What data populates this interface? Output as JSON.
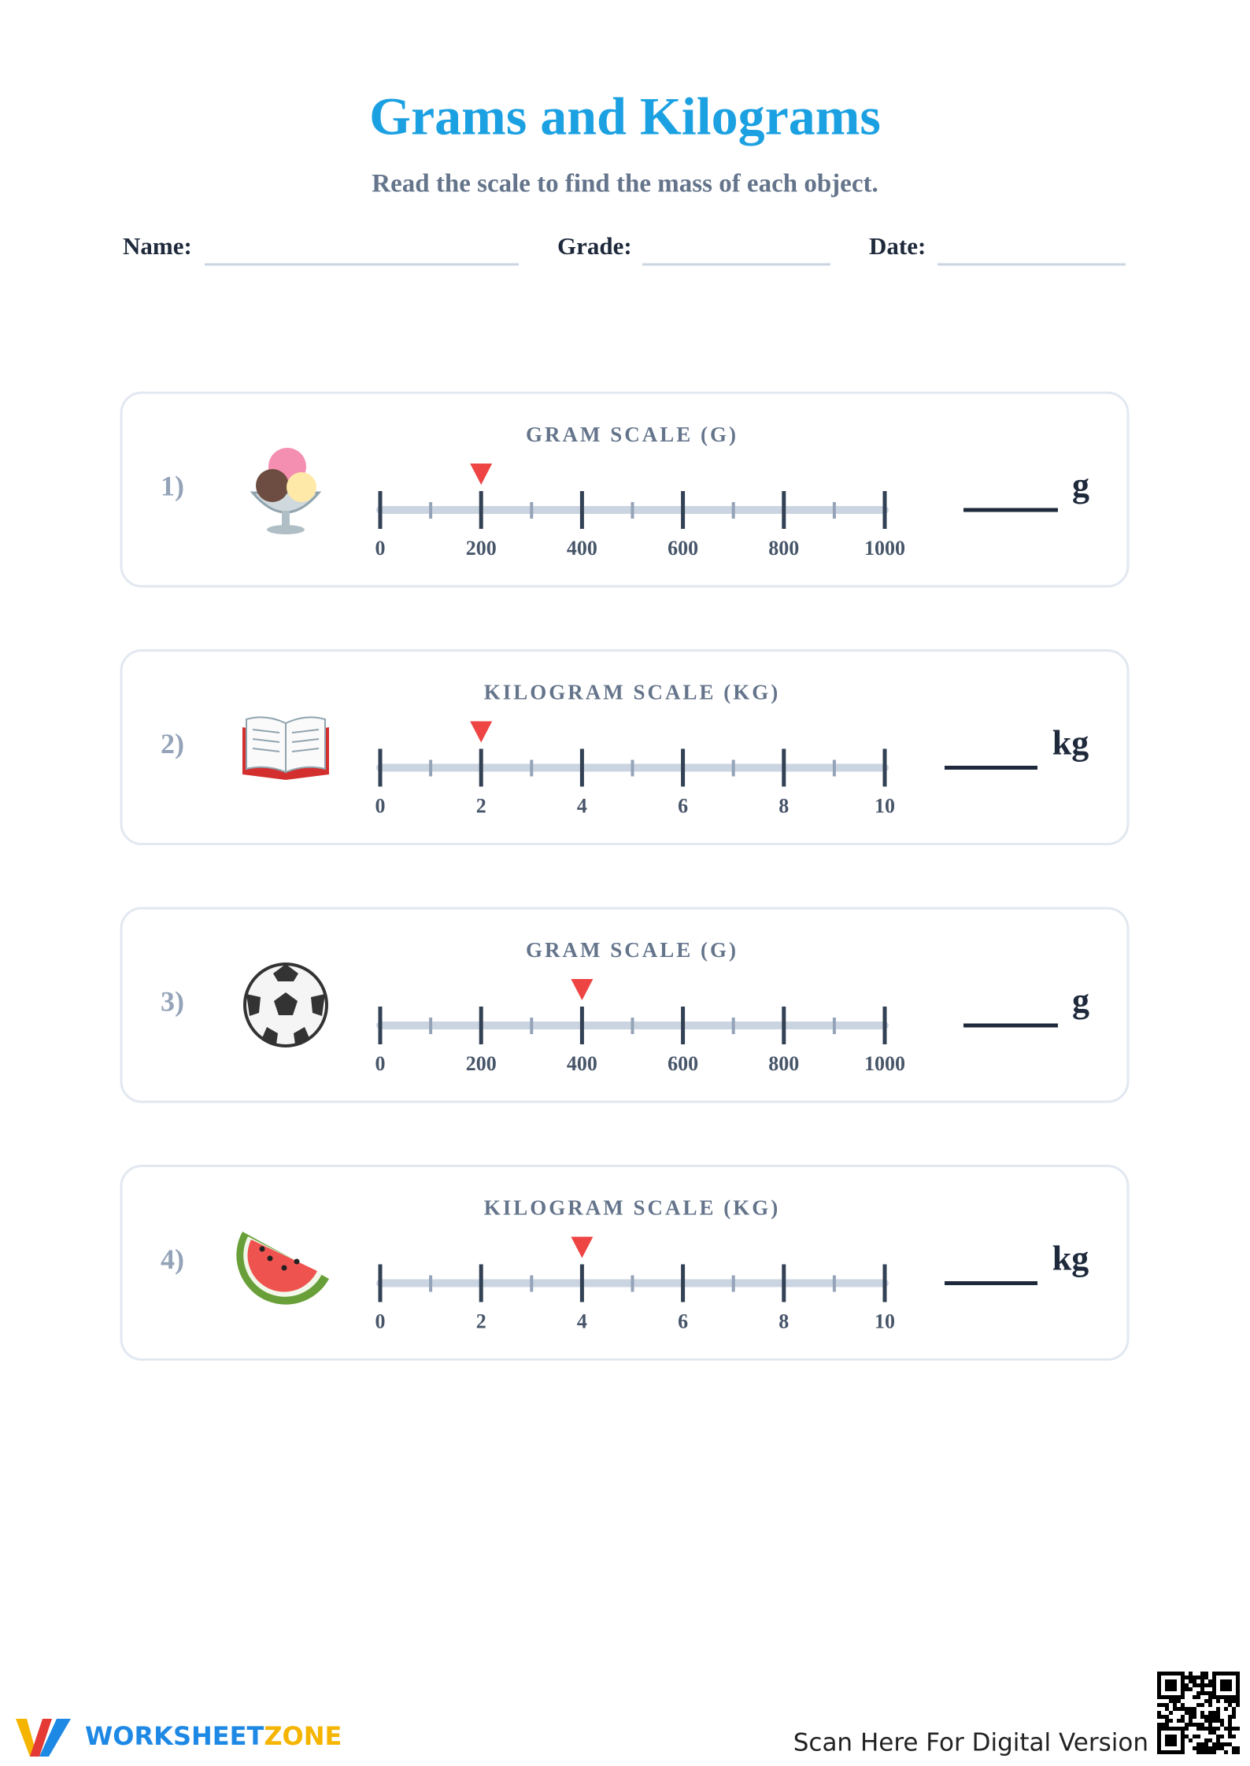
{
  "header": {
    "title": "Grams and Kilograms",
    "subtitle": "Read the scale to find the mass of each object.",
    "fields": [
      "Name:",
      "Grade:",
      "Date:"
    ]
  },
  "problems": [
    {
      "number": "1)",
      "scale_title": "GRAM SCALE (G)",
      "ticks": [
        0,
        200,
        400,
        600,
        800,
        1000
      ],
      "pointer": 200,
      "unit": "g"
    },
    {
      "number": "2)",
      "scale_title": "KILOGRAM SCALE (KG)",
      "ticks": [
        0,
        2,
        4,
        6,
        8,
        10
      ],
      "pointer": 2,
      "unit": "kg"
    },
    {
      "number": "3)",
      "scale_title": "GRAM SCALE (G)",
      "ticks": [
        0,
        200,
        400,
        600,
        800,
        1000
      ],
      "pointer": 400,
      "unit": "g"
    },
    {
      "number": "4)",
      "scale_title": "KILOGRAM SCALE (KG)",
      "ticks": [
        0,
        2,
        4,
        6,
        8,
        10
      ],
      "pointer": 4,
      "unit": "kg"
    }
  ],
  "footer": {
    "brand": [
      "WORKSHEET",
      "ZONE"
    ],
    "scan_text": "Scan Here For Digital Version"
  }
}
